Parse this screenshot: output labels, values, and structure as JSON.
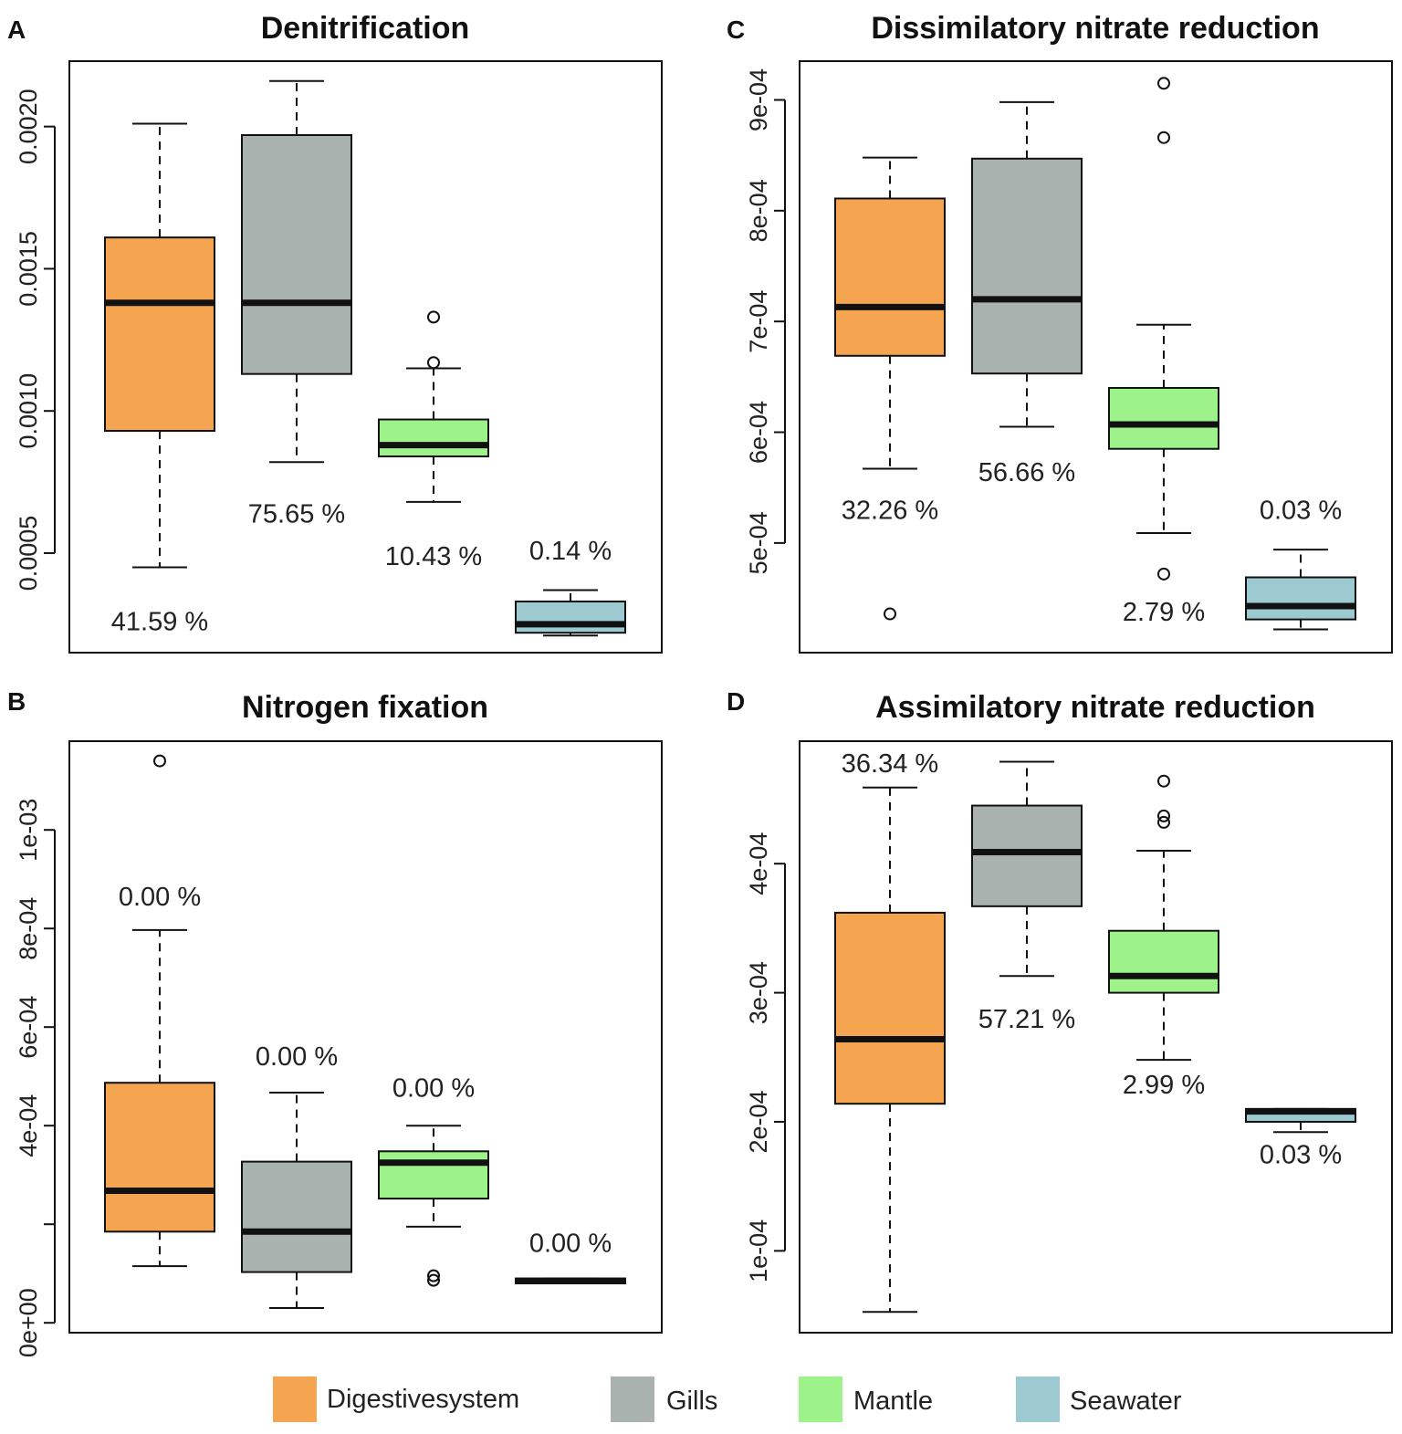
{
  "legend": [
    {
      "label": "Digestivesystem",
      "color": "#f5a54f"
    },
    {
      "label": "Gills",
      "color": "#aab2b0"
    },
    {
      "label": "Mantle",
      "color": "#9ef28a"
    },
    {
      "label": "Seawater",
      "color": "#9dcad0"
    }
  ],
  "chart_data": [
    {
      "type": "box",
      "panel": "A",
      "title": "Denitrification",
      "ylim": [
        0.00015,
        0.00223
      ],
      "yticks": [
        0.0005,
        0.001,
        0.0015,
        0.002
      ],
      "ytick_labels": [
        "0.0005",
        "0.0010",
        "0.0015",
        "0.0020"
      ],
      "groups": [
        {
          "name": "Digestivesystem",
          "whisker_low": 0.00045,
          "q1": 0.00093,
          "median": 0.00138,
          "q3": 0.00161,
          "whisker_high": 0.00201,
          "outliers": [],
          "pct_label": "41.59 %",
          "pct_value": 0.00026
        },
        {
          "name": "Gills",
          "whisker_low": 0.00082,
          "q1": 0.00113,
          "median": 0.00138,
          "q3": 0.00197,
          "whisker_high": 0.00216,
          "outliers": [],
          "pct_label": "75.65 %",
          "pct_value": 0.00064
        },
        {
          "name": "Mantle",
          "whisker_low": 0.00068,
          "q1": 0.00084,
          "median": 0.00088,
          "q3": 0.00097,
          "whisker_high": 0.00115,
          "outliers": [
            0.00117,
            0.00133
          ],
          "pct_label": "10.43 %",
          "pct_value": 0.00049
        },
        {
          "name": "Seawater",
          "whisker_low": 0.00021,
          "q1": 0.00022,
          "median": 0.00025,
          "q3": 0.00033,
          "whisker_high": 0.00037,
          "outliers": [],
          "pct_label": "0.14 %",
          "pct_value": 0.00051
        }
      ]
    },
    {
      "type": "box",
      "panel": "B",
      "title": "Nitrogen fixation",
      "ylim": [
        -2e-05,
        0.00118
      ],
      "yticks": [
        0,
        0.0002,
        0.0004,
        0.0006,
        0.0008,
        0.001
      ],
      "ytick_labels": [
        "0e+00",
        "",
        "4e-04",
        "6e-04",
        "8e-04",
        "1e-03"
      ],
      "groups": [
        {
          "name": "Digestivesystem",
          "whisker_low": 0.000115,
          "q1": 0.000185,
          "median": 0.000268,
          "q3": 0.000487,
          "whisker_high": 0.000797,
          "outliers": [
            0.00114
          ],
          "pct_label": "0.00 %",
          "pct_value": 0.000865
        },
        {
          "name": "Gills",
          "whisker_low": 3e-05,
          "q1": 0.000103,
          "median": 0.000185,
          "q3": 0.000327,
          "whisker_high": 0.000467,
          "outliers": [],
          "pct_label": "0.00 %",
          "pct_value": 0.000541
        },
        {
          "name": "Mantle",
          "whisker_low": 0.000195,
          "q1": 0.000252,
          "median": 0.000325,
          "q3": 0.000348,
          "whisker_high": 0.0004,
          "outliers": [
            8.62e-05,
            9.55e-05
          ],
          "pct_label": "0.00 %",
          "pct_value": 0.000477
        },
        {
          "name": "Seawater",
          "whisker_low": 8e-05,
          "q1": 8e-05,
          "median": 8.5e-05,
          "q3": 9e-05,
          "whisker_high": 9e-05,
          "outliers": [],
          "pct_label": "0.00 %",
          "pct_value": 0.000162
        }
      ]
    },
    {
      "type": "box",
      "panel": "C",
      "title": "Dissimilatory nitrate reduction",
      "ylim": [
        0.000401,
        0.000935
      ],
      "yticks": [
        0.0005,
        0.0006,
        0.0007,
        0.0008,
        0.0009
      ],
      "ytick_labels": [
        "5e-04",
        "6e-04",
        "7e-04",
        "8e-04",
        "9e-04"
      ],
      "groups": [
        {
          "name": "Digestivesystem",
          "whisker_low": 0.000567,
          "q1": 0.000669,
          "median": 0.000713,
          "q3": 0.000811,
          "whisker_high": 0.000848,
          "outliers": [
            0.000436
          ],
          "pct_label": "32.26 %",
          "pct_value": 0.00053
        },
        {
          "name": "Gills",
          "whisker_low": 0.000605,
          "q1": 0.000653,
          "median": 0.00072,
          "q3": 0.000847,
          "whisker_high": 0.000898,
          "outliers": [],
          "pct_label": "56.66 %",
          "pct_value": 0.000564
        },
        {
          "name": "Mantle",
          "whisker_low": 0.000509,
          "q1": 0.000585,
          "median": 0.000607,
          "q3": 0.00064,
          "whisker_high": 0.000697,
          "outliers": [
            0.000866,
            0.000915,
            0.000472
          ],
          "pct_label": "2.79 %",
          "pct_value": 0.000438
        },
        {
          "name": "Seawater",
          "whisker_low": 0.000422,
          "q1": 0.000431,
          "median": 0.000443,
          "q3": 0.000469,
          "whisker_high": 0.000494,
          "outliers": [],
          "pct_label": "0.03 %",
          "pct_value": 0.00053
        }
      ]
    },
    {
      "type": "box",
      "panel": "D",
      "title": "Assimilatory nitrate reduction",
      "ylim": [
        3.66e-05,
        0.0004949
      ],
      "yticks": [
        0.0001,
        0.0002,
        0.0003,
        0.0004
      ],
      "ytick_labels": [
        "1e-04",
        "2e-04",
        "3e-04",
        "4e-04"
      ],
      "groups": [
        {
          "name": "Digestivesystem",
          "whisker_low": 5.27e-05,
          "q1": 0.000214,
          "median": 0.000264,
          "q3": 0.000362,
          "whisker_high": 0.000459,
          "outliers": [],
          "pct_label": "36.34 %",
          "pct_value": 0.000478
        },
        {
          "name": "Gills",
          "whisker_low": 0.000313,
          "q1": 0.000367,
          "median": 0.000409,
          "q3": 0.000445,
          "whisker_high": 0.000479,
          "outliers": [],
          "pct_label": "57.21 %",
          "pct_value": 0.00028
        },
        {
          "name": "Mantle",
          "whisker_low": 0.000248,
          "q1": 0.0003,
          "median": 0.000313,
          "q3": 0.000348,
          "whisker_high": 0.00041,
          "outliers": [
            0.000464,
            0.000437,
            0.000432
          ],
          "pct_label": "2.99 %",
          "pct_value": 0.000229
        },
        {
          "name": "Seawater",
          "whisker_low": 0.000192,
          "q1": 0.0002,
          "median": 0.000208,
          "q3": 0.00021,
          "whisker_high": 0.00021,
          "outliers": [],
          "pct_label": "0.03 %",
          "pct_value": 0.000175
        }
      ]
    }
  ]
}
